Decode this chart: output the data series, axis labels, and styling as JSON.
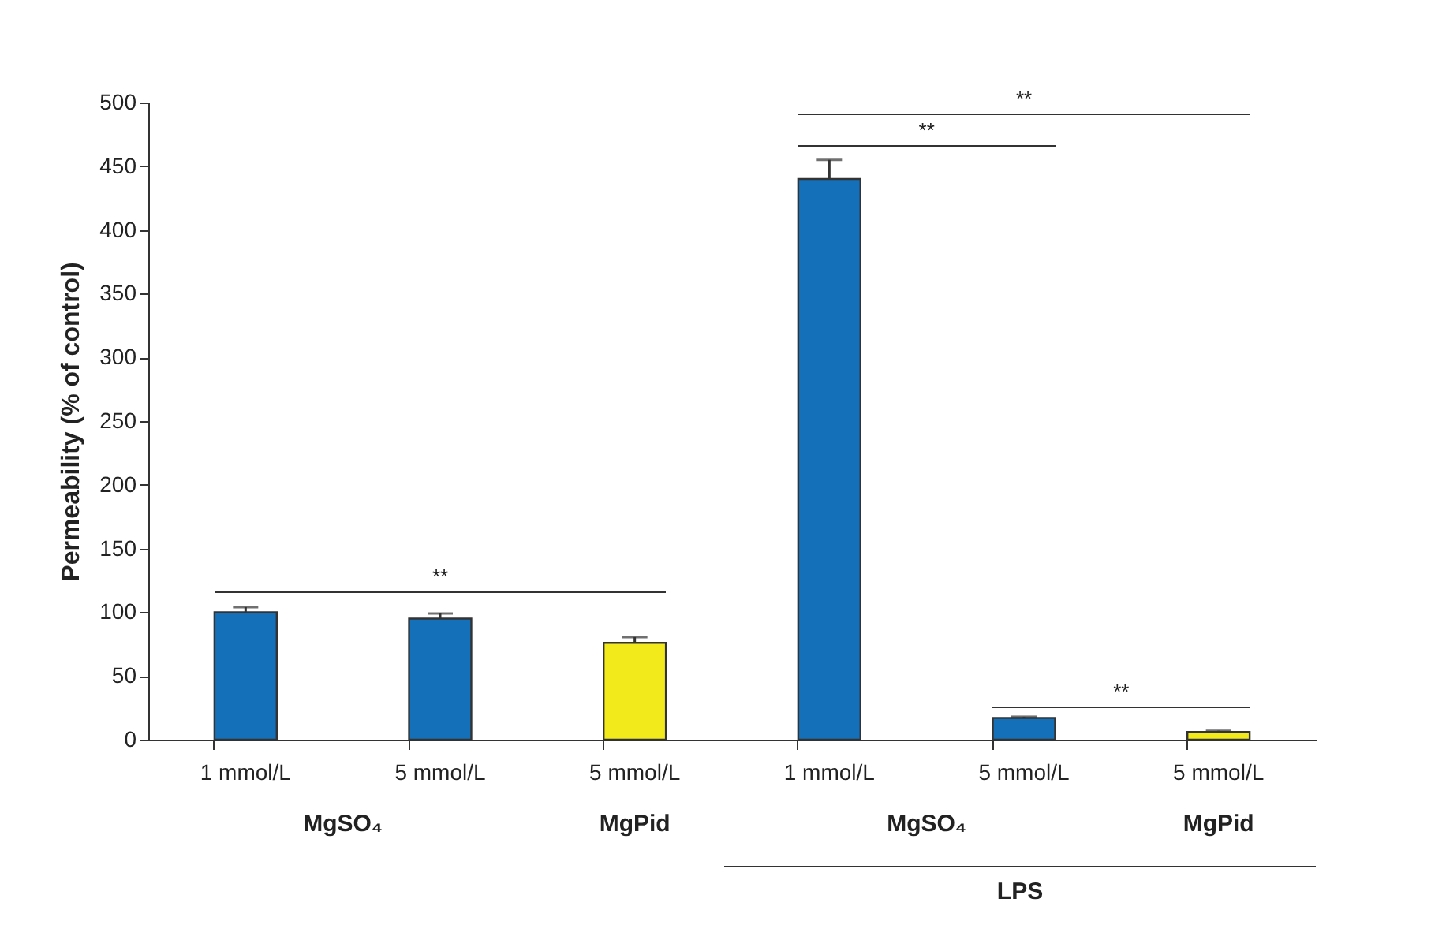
{
  "chart_data": {
    "type": "bar",
    "ylabel": "Permeability (% of control)",
    "categories": [
      "1 mmol/L",
      "5 mmol/L",
      "5 mmol/L",
      "1 mmol/L",
      "5 mmol/L",
      "5 mmol/L"
    ],
    "values": [
      100,
      95,
      76,
      440,
      17,
      6
    ],
    "errors": [
      4,
      4,
      4.5,
      15,
      1,
      1
    ],
    "colors": [
      "#1470b8",
      "#1470b8",
      "#f2ea1a",
      "#1470b8",
      "#1470b8",
      "#f2ea1a"
    ],
    "ylim": [
      0,
      500
    ],
    "yticks": [
      0,
      50,
      100,
      150,
      200,
      250,
      300,
      350,
      400,
      450,
      500
    ],
    "grid": false,
    "legend": false,
    "annotations": [
      "**",
      "**",
      "**",
      "**",
      "MgSO₄",
      "MgPid",
      "MgSO₄",
      "MgPid",
      "LPS"
    ]
  }
}
